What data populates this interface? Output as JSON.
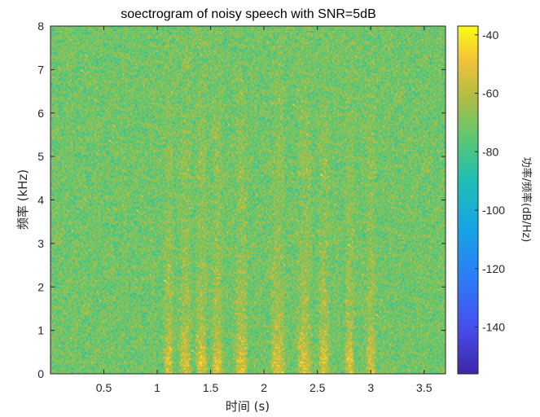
{
  "chart_data": {
    "type": "heatmap",
    "title": "soectrogram of noisy speech with SNR=5dB",
    "xlabel": "时间 (s)",
    "ylabel": "频率 (kHz)",
    "xlim": [
      0.0,
      3.7
    ],
    "ylim": [
      0,
      8
    ],
    "x_ticks": [
      "0.5",
      "1",
      "1.5",
      "2",
      "2.5",
      "3",
      "3.5"
    ],
    "x_tick_values": [
      0.5,
      1,
      1.5,
      2,
      2.5,
      3,
      3.5
    ],
    "y_ticks": [
      "0",
      "1",
      "2",
      "3",
      "4",
      "5",
      "6",
      "7",
      "8"
    ],
    "y_tick_values": [
      0,
      1,
      2,
      3,
      4,
      5,
      6,
      7,
      8
    ],
    "colorbar": {
      "label": "功率/频率(dB/Hz)",
      "range": [
        -156,
        -37
      ],
      "ticks": [
        "-40",
        "-60",
        "-80",
        "-100",
        "-120",
        "-140"
      ],
      "tick_values": [
        -40,
        -60,
        -80,
        -100,
        -120,
        -140
      ],
      "colormap": "parula"
    },
    "noise_floor_db": -72,
    "speech_segments_s": [
      [
        1.05,
        1.15
      ],
      [
        1.2,
        1.32
      ],
      [
        1.35,
        1.47
      ],
      [
        1.5,
        1.62
      ],
      [
        1.72,
        1.85
      ],
      [
        2.05,
        2.2
      ],
      [
        2.3,
        2.45
      ],
      [
        2.5,
        2.62
      ],
      [
        2.75,
        2.85
      ],
      [
        2.95,
        3.05
      ]
    ]
  }
}
